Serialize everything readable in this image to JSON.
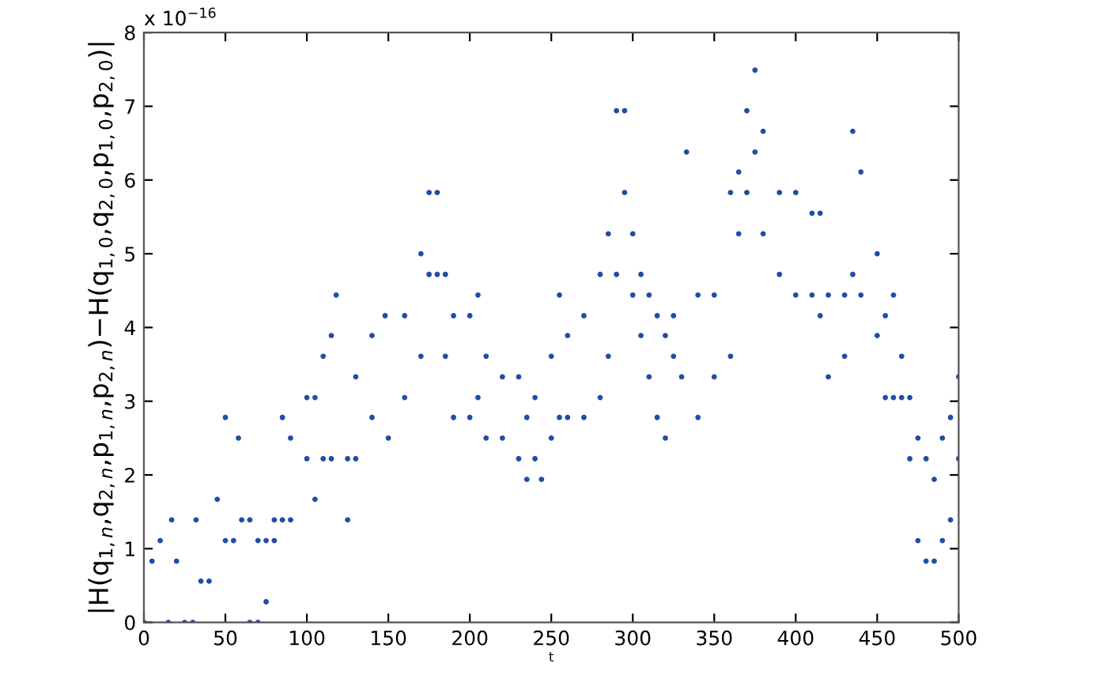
{
  "chart_data": {
    "type": "scatter",
    "xlabel": "t",
    "ylabel": "|H(q$_{1,n}$,q$_{2,n}$,p$_{1,n}$,p$_{2,n}$)−H(q$_{1,0}$,q$_{2,0}$,p$_{1,0}$,p$_{2,0}$)|",
    "annotations": [
      "x 10$^{−16}$"
    ],
    "xlim": [
      0,
      500
    ],
    "xticks": [
      0,
      50,
      100,
      150,
      200,
      250,
      300,
      350,
      400,
      450,
      500
    ],
    "ylim": [
      0,
      8
    ],
    "yticks": [
      0,
      1,
      2,
      3,
      4,
      5,
      6,
      7,
      8
    ],
    "grid": false,
    "legend": false,
    "marker": "circle",
    "series": [
      {
        "color": "#1f4ea6",
        "x": [
          0,
          5,
          10,
          15,
          17,
          20,
          25,
          30,
          32,
          35,
          40,
          45,
          50,
          50,
          55,
          58,
          60,
          65,
          65,
          70,
          70,
          75,
          75,
          80,
          80,
          85,
          85,
          90,
          90,
          100,
          100,
          105,
          105,
          110,
          110,
          115,
          115,
          118,
          125,
          125,
          130,
          130,
          140,
          140,
          148,
          150,
          160,
          160,
          170,
          170,
          175,
          175,
          180,
          180,
          185,
          185,
          190,
          190,
          200,
          200,
          205,
          205,
          210,
          210,
          220,
          220,
          230,
          230,
          235,
          235,
          240,
          240,
          244,
          250,
          250,
          255,
          255,
          260,
          260,
          270,
          270,
          280,
          280,
          285,
          285,
          290,
          290,
          295,
          295,
          300,
          300,
          305,
          305,
          310,
          310,
          315,
          315,
          320,
          320,
          325,
          325,
          330,
          333,
          340,
          340,
          350,
          350,
          360,
          360,
          365,
          365,
          370,
          370,
          375,
          375,
          380,
          380,
          390,
          390,
          400,
          400,
          410,
          410,
          415,
          415,
          420,
          420,
          430,
          430,
          435,
          435,
          440,
          440,
          450,
          450,
          455,
          455,
          460,
          460,
          465,
          465,
          470,
          470,
          475,
          475,
          480,
          480,
          485,
          485,
          490,
          490,
          495,
          495,
          500,
          500
        ],
        "values": [
          0,
          0.83,
          1.11,
          0,
          1.39,
          0.83,
          0,
          0,
          1.39,
          0.56,
          0.56,
          1.67,
          2.78,
          1.11,
          1.11,
          2.5,
          1.39,
          0,
          1.39,
          0,
          1.11,
          0.28,
          1.11,
          1.11,
          1.39,
          1.39,
          2.78,
          1.39,
          2.5,
          2.22,
          3.05,
          1.67,
          3.05,
          2.22,
          3.61,
          2.22,
          3.89,
          4.44,
          1.39,
          2.22,
          2.22,
          3.33,
          2.78,
          3.89,
          4.16,
          2.5,
          3.05,
          4.16,
          3.61,
          5.0,
          4.72,
          5.83,
          4.72,
          5.83,
          3.61,
          4.72,
          2.78,
          4.16,
          2.78,
          4.16,
          3.05,
          4.44,
          2.5,
          3.61,
          2.5,
          3.33,
          2.22,
          3.33,
          1.94,
          2.78,
          2.22,
          3.05,
          1.94,
          2.5,
          3.61,
          2.78,
          4.44,
          2.78,
          3.89,
          2.78,
          4.16,
          3.05,
          4.72,
          3.61,
          5.27,
          4.72,
          6.94,
          5.83,
          6.94,
          4.44,
          5.27,
          3.89,
          4.72,
          3.33,
          4.44,
          2.78,
          4.16,
          2.5,
          3.89,
          3.61,
          4.16,
          3.33,
          6.38,
          2.78,
          4.44,
          3.33,
          4.44,
          3.61,
          5.83,
          5.27,
          6.11,
          5.83,
          6.94,
          6.38,
          7.49,
          5.27,
          6.66,
          4.72,
          5.83,
          4.44,
          5.83,
          4.44,
          5.55,
          4.16,
          5.55,
          3.33,
          4.44,
          3.61,
          4.44,
          4.72,
          6.66,
          4.44,
          6.11,
          3.89,
          5.0,
          3.05,
          4.16,
          3.05,
          4.44,
          3.05,
          3.61,
          2.22,
          3.05,
          1.11,
          2.5,
          0.83,
          2.22,
          0.83,
          1.94,
          1.11,
          2.5,
          1.39,
          2.78,
          2.22,
          3.33
        ]
      }
    ]
  }
}
